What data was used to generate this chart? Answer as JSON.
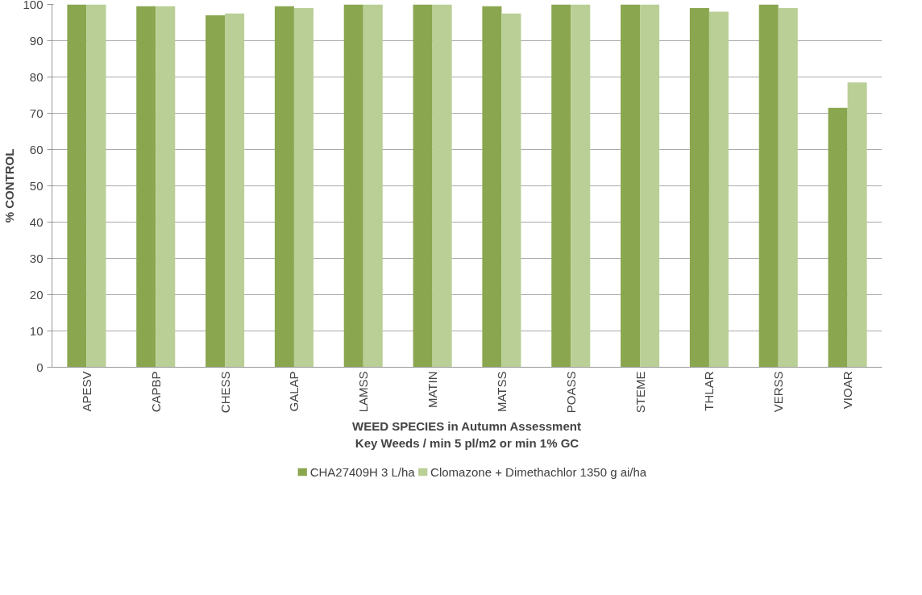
{
  "chart_data": {
    "type": "bar",
    "xlabel": "WEED SPECIES in Autumn Assessment\nKey Weeds / min 5 pl/m2 or min 1% GC",
    "ylabel": "% CONTROL",
    "categories": [
      "APESV",
      "CAPBP",
      "CHESS",
      "GALAP",
      "LAMSS",
      "MATIN",
      "MATSS",
      "POASS",
      "STEME",
      "THLAR",
      "VERSS",
      "VIOAR"
    ],
    "series": [
      {
        "name": "CHA27409H 3 L/ha",
        "color": "#8aa64f",
        "values": [
          100,
          99.5,
          97,
          99.5,
          100,
          100,
          99.5,
          100,
          100,
          99,
          100,
          71.5
        ]
      },
      {
        "name": "Clomazone + Dimethachlor 1350 g ai/ha",
        "color": "#b9cf96",
        "values": [
          100,
          99.5,
          97.5,
          99,
          100,
          100,
          97.5,
          100,
          100,
          98,
          99,
          78.5
        ]
      }
    ],
    "ylim": [
      0,
      100
    ],
    "yticks": [
      0,
      10,
      20,
      30,
      40,
      50,
      60,
      70,
      80,
      90,
      100
    ],
    "grid": "y",
    "legend": "bottom"
  }
}
